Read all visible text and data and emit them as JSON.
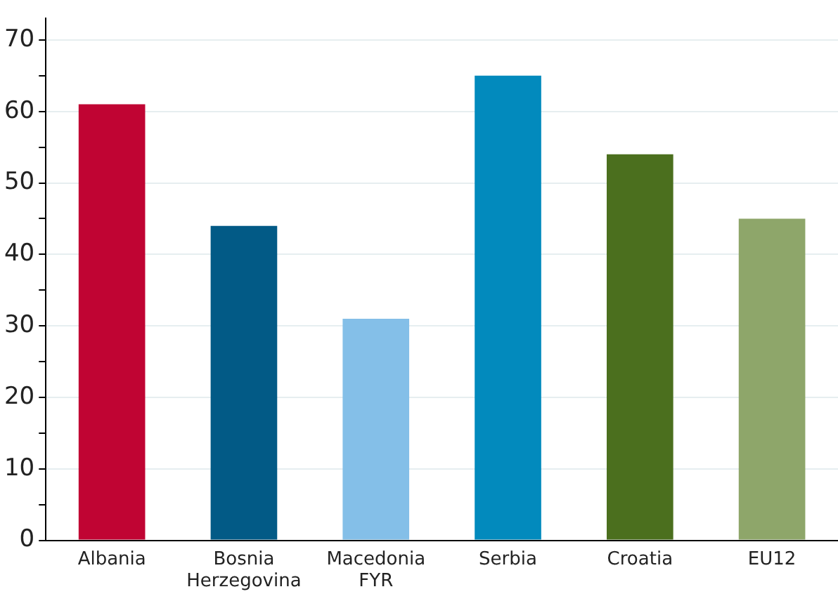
{
  "chart_data": {
    "type": "bar",
    "categories": [
      "Albania",
      "Bosnia Herzegovina",
      "Macedonia FYR",
      "Serbia",
      "Croatia",
      "EU12"
    ],
    "values": [
      61,
      44,
      31,
      65,
      54,
      45
    ],
    "colors": [
      "#c00433",
      "#025a86",
      "#84bfe8",
      "#028abd",
      "#4b6f1e",
      "#8ea66a"
    ],
    "ylim": [
      0,
      73
    ],
    "yticks": [
      0,
      {
        "value": 5,
        "label": null
      },
      10,
      {
        "value": 15,
        "label": null
      },
      20,
      {
        "value": 25,
        "label": null
      },
      30,
      {
        "value": 35,
        "label": null
      },
      40,
      {
        "value": 45,
        "label": null
      },
      50,
      {
        "value": 55,
        "label": null
      },
      60,
      {
        "value": 65,
        "label": null
      },
      70
    ],
    "grid": "y",
    "legend": false
  }
}
